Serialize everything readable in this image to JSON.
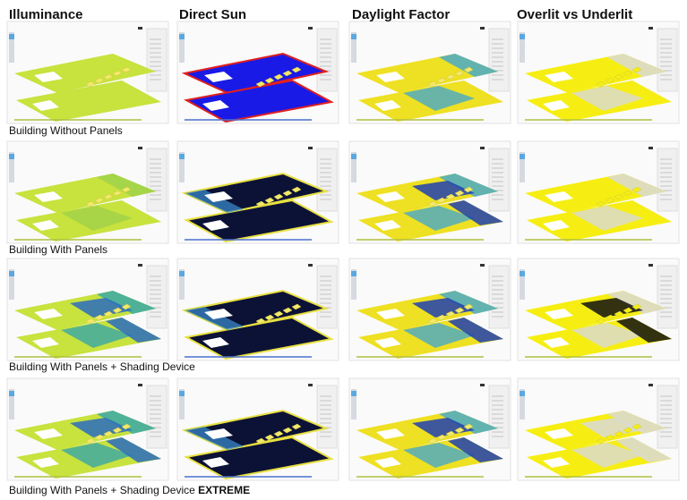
{
  "columns": [
    "Illuminance",
    "Direct Sun",
    "Daylight Factor",
    "Overlit vs Underlit"
  ],
  "rows": [
    {
      "label": "Building Without Panels"
    },
    {
      "label": "Building With Panels"
    },
    {
      "label": "Building With Panels + Shading Device"
    },
    {
      "label": "Building With Panels + Shading Device",
      "emphasis": "EXTREME"
    }
  ]
}
